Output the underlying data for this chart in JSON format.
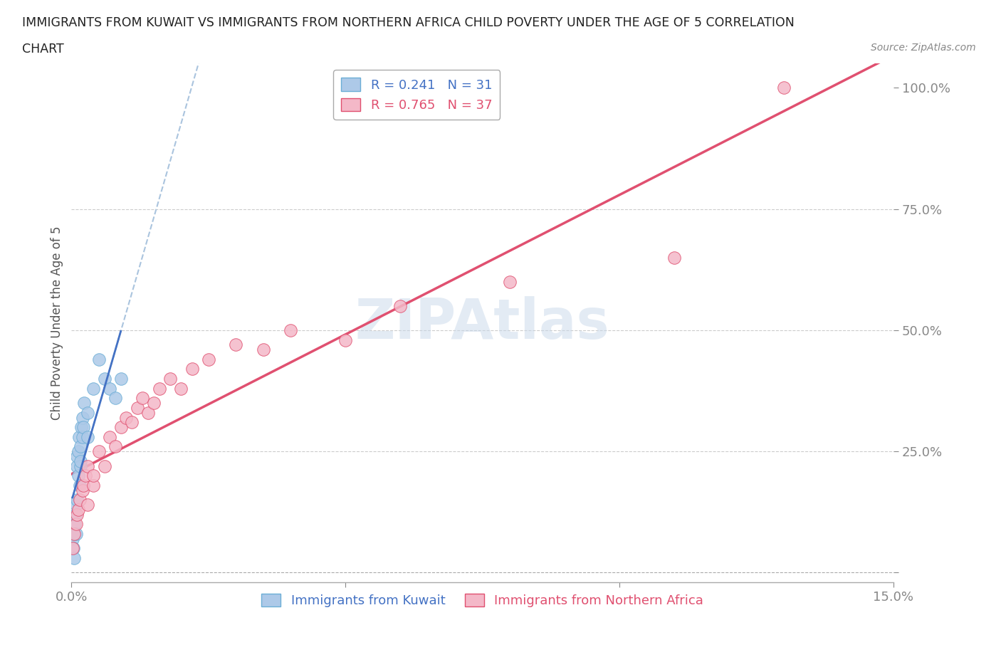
{
  "title_line1": "IMMIGRANTS FROM KUWAIT VS IMMIGRANTS FROM NORTHERN AFRICA CHILD POVERTY UNDER THE AGE OF 5 CORRELATION",
  "title_line2": "CHART",
  "source": "Source: ZipAtlas.com",
  "ylabel": "Child Poverty Under the Age of 5",
  "xlim": [
    0.0,
    0.15
  ],
  "ylim": [
    -0.02,
    1.05
  ],
  "kuwait_color": "#adc9e8",
  "kuwait_edge": "#6baed6",
  "na_color": "#f4b8c8",
  "na_edge": "#e05070",
  "R_kuwait": 0.241,
  "N_kuwait": 31,
  "R_na": 0.765,
  "N_na": 37,
  "reg_kuwait_color": "#4472c4",
  "reg_kuwait_dashed_color": "#aac4de",
  "reg_na_color": "#e05070",
  "kuwait_x": [
    0.0002,
    0.0004,
    0.0005,
    0.0006,
    0.0007,
    0.0008,
    0.0009,
    0.001,
    0.001,
    0.0012,
    0.0013,
    0.0014,
    0.0015,
    0.0016,
    0.0016,
    0.0017,
    0.0018,
    0.002,
    0.002,
    0.0022,
    0.0023,
    0.003,
    0.003,
    0.004,
    0.005,
    0.006,
    0.007,
    0.008,
    0.009,
    0.001,
    0.0005
  ],
  "kuwait_y": [
    0.07,
    0.05,
    0.08,
    0.1,
    0.12,
    0.14,
    0.08,
    0.22,
    0.24,
    0.2,
    0.25,
    0.28,
    0.18,
    0.22,
    0.26,
    0.23,
    0.3,
    0.28,
    0.32,
    0.3,
    0.35,
    0.28,
    0.33,
    0.38,
    0.44,
    0.4,
    0.38,
    0.36,
    0.4,
    0.15,
    0.03
  ],
  "na_x": [
    0.0002,
    0.0005,
    0.0008,
    0.001,
    0.0012,
    0.0015,
    0.002,
    0.0022,
    0.0025,
    0.003,
    0.003,
    0.004,
    0.004,
    0.005,
    0.006,
    0.007,
    0.008,
    0.009,
    0.01,
    0.011,
    0.012,
    0.013,
    0.014,
    0.015,
    0.016,
    0.018,
    0.02,
    0.022,
    0.025,
    0.03,
    0.035,
    0.04,
    0.05,
    0.06,
    0.08,
    0.11,
    0.13
  ],
  "na_y": [
    0.05,
    0.08,
    0.1,
    0.12,
    0.13,
    0.15,
    0.17,
    0.18,
    0.2,
    0.14,
    0.22,
    0.18,
    0.2,
    0.25,
    0.22,
    0.28,
    0.26,
    0.3,
    0.32,
    0.31,
    0.34,
    0.36,
    0.33,
    0.35,
    0.38,
    0.4,
    0.38,
    0.42,
    0.44,
    0.47,
    0.46,
    0.5,
    0.48,
    0.55,
    0.6,
    0.65,
    1.0
  ],
  "grid_color": "#cccccc",
  "watermark_color": "#c8d8ea",
  "bg_color": "#ffffff"
}
